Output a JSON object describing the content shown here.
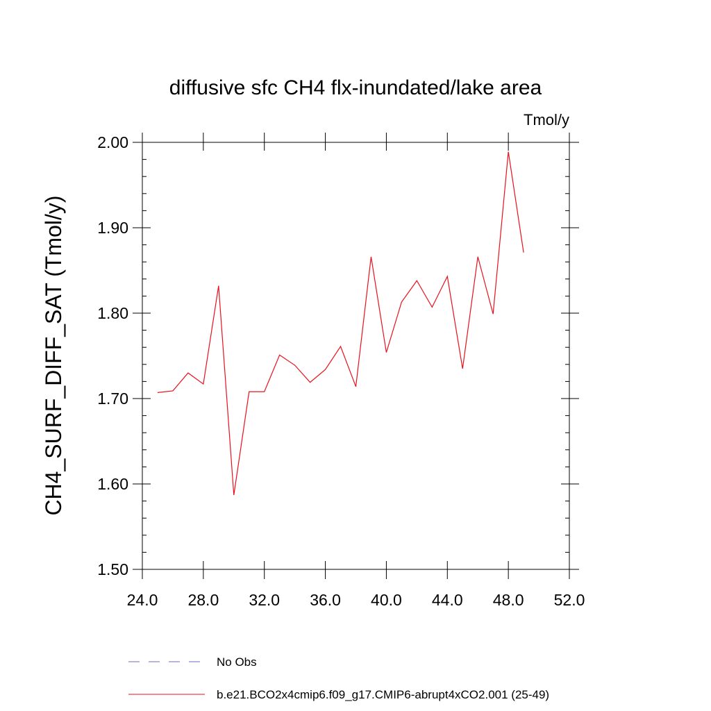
{
  "chart_data": {
    "type": "line",
    "title": "diffusive sfc CH4 flx-inundated/lake area",
    "units": "Tmol/y",
    "xlabel": "",
    "ylabel": "CH4_SURF_DIFF_SAT  (Tmol/y)",
    "xlim": [
      24.0,
      52.0
    ],
    "ylim": [
      1.5,
      2.0
    ],
    "x_ticks": [
      24.0,
      28.0,
      32.0,
      36.0,
      40.0,
      44.0,
      48.0,
      52.0
    ],
    "x_tick_labels": [
      "24.0",
      "28.0",
      "32.0",
      "36.0",
      "40.0",
      "44.0",
      "48.0",
      "52.0"
    ],
    "y_ticks": [
      1.5,
      1.6,
      1.7,
      1.8,
      1.9,
      2.0
    ],
    "y_tick_labels": [
      "1.50",
      "1.60",
      "1.70",
      "1.80",
      "1.90",
      "2.00"
    ],
    "grid": false,
    "legend_position": "bottom",
    "series": [
      {
        "name": "b.e21.BCO2x4cmip6.f09_g17.CMIP6-abrupt4xCO2.001 (25-49)",
        "color": "#e8101a",
        "x": [
          25,
          26,
          27,
          28,
          29,
          30,
          31,
          32,
          33,
          34,
          35,
          36,
          37,
          38,
          39,
          40,
          41,
          42,
          43,
          44,
          45,
          46,
          47,
          48,
          49
        ],
        "y": [
          1.707,
          1.709,
          1.73,
          1.717,
          1.832,
          1.587,
          1.708,
          1.708,
          1.751,
          1.739,
          1.719,
          1.734,
          1.761,
          1.714,
          1.866,
          1.754,
          1.813,
          1.838,
          1.807,
          1.843,
          1.735,
          1.866,
          1.799,
          1.989,
          1.871
        ]
      }
    ],
    "legend": [
      {
        "label": "No Obs",
        "style": "dashed",
        "color": "#6d6db8"
      },
      {
        "label": "b.e21.BCO2x4cmip6.f09_g17.CMIP6-abrupt4xCO2.001 (25-49)",
        "style": "solid",
        "color": "#e8101a"
      }
    ]
  }
}
